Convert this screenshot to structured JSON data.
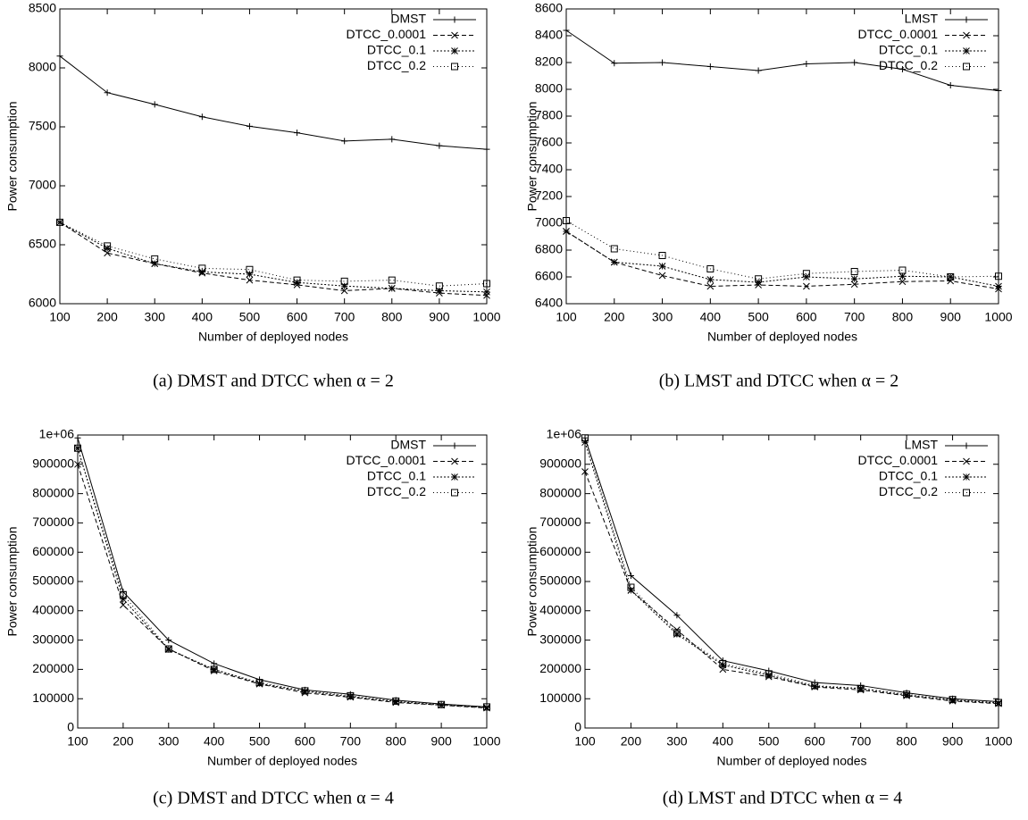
{
  "chart_data": [
    {
      "type": "line",
      "caption": "(a) DMST and DTCC when α = 2",
      "xlabel": "Number of deployed nodes",
      "ylabel": "Power consumption",
      "x": [
        100,
        200,
        300,
        400,
        500,
        600,
        700,
        800,
        900,
        1000
      ],
      "xlim": [
        100,
        1000
      ],
      "xticks": [
        100,
        200,
        300,
        400,
        500,
        600,
        700,
        800,
        900,
        1000
      ],
      "ylim": [
        6000,
        8500
      ],
      "yticks": [
        6000,
        6500,
        7000,
        7500,
        8000,
        8500
      ],
      "grid": false,
      "legend": "upper right",
      "series": [
        {
          "name": "DMST",
          "color": "#000000",
          "line_style": "solid",
          "marker": "plus",
          "values": [
            8100,
            7790,
            7690,
            7585,
            7505,
            7450,
            7380,
            7395,
            7340,
            7310
          ]
        },
        {
          "name": "DTCC_0.0001",
          "color": "#000000",
          "line_style": "dashed",
          "marker": "cross",
          "values": [
            6690,
            6430,
            6340,
            6260,
            6200,
            6160,
            6110,
            6130,
            6090,
            6070
          ]
        },
        {
          "name": "DTCC_0.1",
          "color": "#000000",
          "line_style": "dotted",
          "marker": "star",
          "values": [
            6690,
            6470,
            6340,
            6270,
            6250,
            6180,
            6150,
            6130,
            6110,
            6100
          ]
        },
        {
          "name": "DTCC_0.2",
          "color": "#000000",
          "line_style": "sparse",
          "marker": "square",
          "values": [
            6690,
            6490,
            6380,
            6300,
            6290,
            6200,
            6190,
            6200,
            6150,
            6170
          ]
        }
      ]
    },
    {
      "type": "line",
      "caption": "(b) LMST and DTCC when α = 2",
      "xlabel": "Number of deployed nodes",
      "ylabel": "Power consumption",
      "x": [
        100,
        200,
        300,
        400,
        500,
        600,
        700,
        800,
        900,
        1000
      ],
      "xlim": [
        100,
        1000
      ],
      "xticks": [
        100,
        200,
        300,
        400,
        500,
        600,
        700,
        800,
        900,
        1000
      ],
      "ylim": [
        6400,
        8600
      ],
      "yticks": [
        6400,
        6600,
        6800,
        7000,
        7200,
        7400,
        7600,
        7800,
        8000,
        8200,
        8400,
        8600
      ],
      "grid": false,
      "legend": "upper right",
      "series": [
        {
          "name": "LMST",
          "color": "#000000",
          "line_style": "solid",
          "marker": "plus",
          "values": [
            8440,
            8195,
            8200,
            8170,
            8140,
            8190,
            8200,
            8150,
            8030,
            7990
          ]
        },
        {
          "name": "DTCC_0.0001",
          "color": "#000000",
          "line_style": "dashed",
          "marker": "cross",
          "values": [
            6940,
            6710,
            6610,
            6530,
            6540,
            6530,
            6545,
            6565,
            6570,
            6510
          ]
        },
        {
          "name": "DTCC_0.1",
          "color": "#000000",
          "line_style": "dotted",
          "marker": "star",
          "values": [
            6940,
            6710,
            6680,
            6580,
            6560,
            6600,
            6585,
            6605,
            6600,
            6530
          ]
        },
        {
          "name": "DTCC_0.2",
          "color": "#000000",
          "line_style": "sparse",
          "marker": "square",
          "values": [
            7020,
            6810,
            6760,
            6660,
            6585,
            6625,
            6640,
            6650,
            6600,
            6605
          ]
        }
      ]
    },
    {
      "type": "line",
      "caption": "(c) DMST and DTCC when α = 4",
      "xlabel": "Number of deployed nodes",
      "ylabel": "Power consumption",
      "x": [
        100,
        200,
        300,
        400,
        500,
        600,
        700,
        800,
        900,
        1000
      ],
      "xlim": [
        100,
        1000
      ],
      "xticks": [
        100,
        200,
        300,
        400,
        500,
        600,
        700,
        800,
        900,
        1000
      ],
      "ylim": [
        0,
        1000000
      ],
      "yticks": [
        0,
        100000,
        200000,
        300000,
        400000,
        500000,
        600000,
        700000,
        800000,
        900000,
        {
          "value": 1000000,
          "label": "1e+06"
        }
      ],
      "grid": false,
      "legend": "upper right",
      "series": [
        {
          "name": "DMST",
          "color": "#000000",
          "line_style": "solid",
          "marker": "plus",
          "values": [
            990000,
            465000,
            300000,
            220000,
            165000,
            130000,
            115000,
            95000,
            82000,
            72000
          ]
        },
        {
          "name": "DTCC_0.0001",
          "color": "#000000",
          "line_style": "dashed",
          "marker": "cross",
          "values": [
            900000,
            420000,
            270000,
            195000,
            150000,
            120000,
            105000,
            87000,
            78000,
            68000
          ]
        },
        {
          "name": "DTCC_0.1",
          "color": "#000000",
          "line_style": "dotted",
          "marker": "star",
          "values": [
            955000,
            440000,
            268000,
            200000,
            152000,
            125000,
            107000,
            90000,
            78000,
            70000
          ]
        },
        {
          "name": "DTCC_0.2",
          "color": "#000000",
          "line_style": "sparse",
          "marker": "square",
          "values": [
            955000,
            455000,
            270000,
            200000,
            155000,
            127000,
            110000,
            92000,
            80000,
            72000
          ]
        }
      ]
    },
    {
      "type": "line",
      "caption": "(d) LMST and DTCC when α = 4",
      "xlabel": "Number of deployed nodes",
      "ylabel": "Power consumption",
      "x": [
        100,
        200,
        300,
        400,
        500,
        600,
        700,
        800,
        900,
        1000
      ],
      "xlim": [
        100,
        1000
      ],
      "xticks": [
        100,
        200,
        300,
        400,
        500,
        600,
        700,
        800,
        900,
        1000
      ],
      "ylim": [
        0,
        1000000
      ],
      "yticks": [
        0,
        100000,
        200000,
        300000,
        400000,
        500000,
        600000,
        700000,
        800000,
        900000,
        {
          "value": 1000000,
          "label": "1e+06"
        }
      ],
      "grid": false,
      "legend": "upper right",
      "series": [
        {
          "name": "LMST",
          "color": "#000000",
          "line_style": "solid",
          "marker": "plus",
          "values": [
            990000,
            520000,
            385000,
            230000,
            195000,
            155000,
            145000,
            120000,
            100000,
            90000
          ]
        },
        {
          "name": "DTCC_0.0001",
          "color": "#000000",
          "line_style": "dashed",
          "marker": "cross",
          "values": [
            875000,
            470000,
            335000,
            200000,
            175000,
            140000,
            130000,
            110000,
            92000,
            83000
          ]
        },
        {
          "name": "DTCC_0.1",
          "color": "#000000",
          "line_style": "dotted",
          "marker": "star",
          "values": [
            975000,
            470000,
            320000,
            215000,
            180000,
            142000,
            135000,
            112000,
            95000,
            85000
          ]
        },
        {
          "name": "DTCC_0.2",
          "color": "#000000",
          "line_style": "sparse",
          "marker": "square",
          "values": [
            990000,
            480000,
            325000,
            220000,
            185000,
            145000,
            135000,
            115000,
            97000,
            87000
          ]
        }
      ]
    }
  ]
}
